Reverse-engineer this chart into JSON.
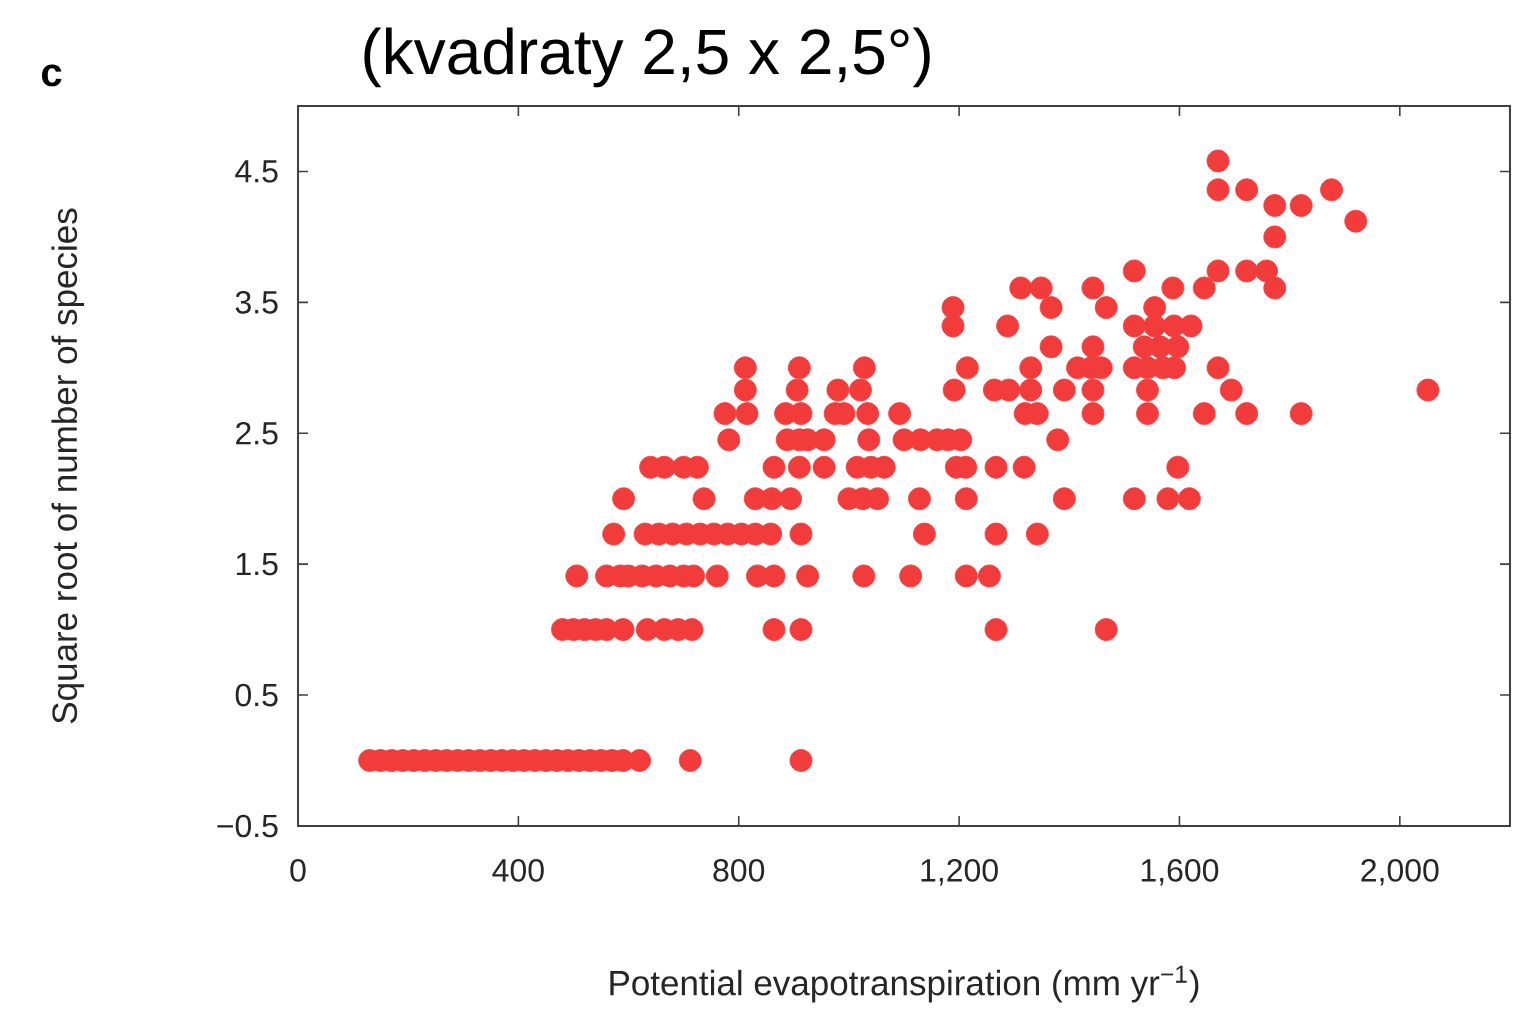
{
  "chart_data": {
    "type": "scatter",
    "title": "(kvadraty 2,5 x 2,5°)",
    "annotations": [
      "c"
    ],
    "xlabel": "Potential evapotranspiration (mm yr$^{−1}$)",
    "ylabel": "Square root of number of species",
    "xlim": [
      0,
      2200
    ],
    "ylim": [
      -0.5,
      5
    ],
    "xticks": [
      0,
      400,
      800,
      {
        "value": 1200,
        "label": "1,200"
      },
      {
        "value": 1600,
        "label": "1,600"
      },
      {
        "value": 2000,
        "label": "2,000"
      }
    ],
    "yticks": [
      {
        "value": -0.5,
        "label": "−0.5"
      },
      0.5,
      1.5,
      2.5,
      3.5,
      4.5
    ],
    "marker": "circle",
    "grid": false,
    "series": [
      {
        "color": "#f23c3c",
        "x": [
          130,
          150,
          170,
          190,
          210,
          230,
          250,
          270,
          290,
          310,
          330,
          350,
          370,
          390,
          410,
          430,
          450,
          470,
          490,
          510,
          530,
          550,
          570,
          590,
          620,
          712,
          913,
          480,
          500,
          520,
          540,
          560,
          590,
          634,
          665,
          690,
          715,
          864,
          913,
          1267,
          1467,
          506,
          560,
          585,
          600,
          625,
          650,
          675,
          700,
          718,
          761,
          834,
          864,
          925,
          1027,
          1112,
          1213,
          1255,
          573,
          630,
          655,
          680,
          705,
          730,
          755,
          780,
          805,
          830,
          858,
          913,
          1137,
          1267,
          1342,
          591,
          737,
          830,
          860,
          894,
          1000,
          1025,
          1052,
          1128,
          1213,
          1391,
          1518,
          1579,
          1618,
          640,
          665,
          700,
          725,
          864,
          910,
          955,
          1015,
          1040,
          1064,
          1195,
          1212,
          1267,
          1318,
          1597,
          782,
          888,
          910,
          925,
          955,
          1036,
          1100,
          1130,
          1160,
          1180,
          1203,
          1379,
          775,
          815,
          885,
          913,
          975,
          991,
          1034,
          1092,
          1320,
          1342,
          1443,
          1542,
          1645,
          1722,
          1821,
          812,
          906,
          980,
          1021,
          1191,
          1264,
          1290,
          1330,
          1391,
          1443,
          1542,
          1694,
          2051,
          812,
          910,
          1028,
          1215,
          1330,
          1415,
          1440,
          1458,
          1518,
          1542,
          1570,
          1591,
          1670,
          1367,
          1443,
          1536,
          1565,
          1597,
          1189,
          1288,
          1518,
          1555,
          1590,
          1621,
          1189,
          1367,
          1467,
          1555,
          1312,
          1349,
          1443,
          1588,
          1645,
          1773,
          1518,
          1670,
          1722,
          1758,
          1773,
          1920,
          1773,
          1821,
          1670,
          1722,
          1876,
          1670
        ],
        "values": [
          0,
          0,
          0,
          0,
          0,
          0,
          0,
          0,
          0,
          0,
          0,
          0,
          0,
          0,
          0,
          0,
          0,
          0,
          0,
          0,
          0,
          0,
          0,
          0,
          0,
          0,
          0,
          1,
          1,
          1,
          1,
          1,
          1,
          1,
          1,
          1,
          1,
          1,
          1,
          1,
          1,
          1.41,
          1.41,
          1.41,
          1.41,
          1.41,
          1.41,
          1.41,
          1.41,
          1.41,
          1.41,
          1.41,
          1.41,
          1.41,
          1.41,
          1.41,
          1.41,
          1.41,
          1.73,
          1.73,
          1.73,
          1.73,
          1.73,
          1.73,
          1.73,
          1.73,
          1.73,
          1.73,
          1.73,
          1.73,
          1.73,
          1.73,
          1.73,
          2,
          2,
          2,
          2,
          2,
          2,
          2,
          2,
          2,
          2,
          2,
          2,
          2,
          2,
          2.24,
          2.24,
          2.24,
          2.24,
          2.24,
          2.24,
          2.24,
          2.24,
          2.24,
          2.24,
          2.24,
          2.24,
          2.24,
          2.24,
          2.24,
          2.45,
          2.45,
          2.45,
          2.45,
          2.45,
          2.45,
          2.45,
          2.45,
          2.45,
          2.45,
          2.45,
          2.45,
          2.65,
          2.65,
          2.65,
          2.65,
          2.65,
          2.65,
          2.65,
          2.65,
          2.65,
          2.65,
          2.65,
          2.65,
          2.65,
          2.65,
          2.65,
          2.83,
          2.83,
          2.83,
          2.83,
          2.83,
          2.83,
          2.83,
          2.83,
          2.83,
          2.83,
          2.83,
          2.83,
          2.83,
          3,
          3,
          3,
          3,
          3,
          3,
          3,
          3,
          3,
          3,
          3,
          3,
          3,
          3.16,
          3.16,
          3.16,
          3.16,
          3.16,
          3.32,
          3.32,
          3.32,
          3.32,
          3.32,
          3.32,
          3.46,
          3.46,
          3.46,
          3.46,
          3.61,
          3.61,
          3.61,
          3.61,
          3.61,
          3.61,
          3.74,
          3.74,
          3.74,
          3.74,
          4,
          4.12,
          4.24,
          4.24,
          4.36,
          4.36,
          4.36,
          4.58
        ]
      }
    ]
  }
}
